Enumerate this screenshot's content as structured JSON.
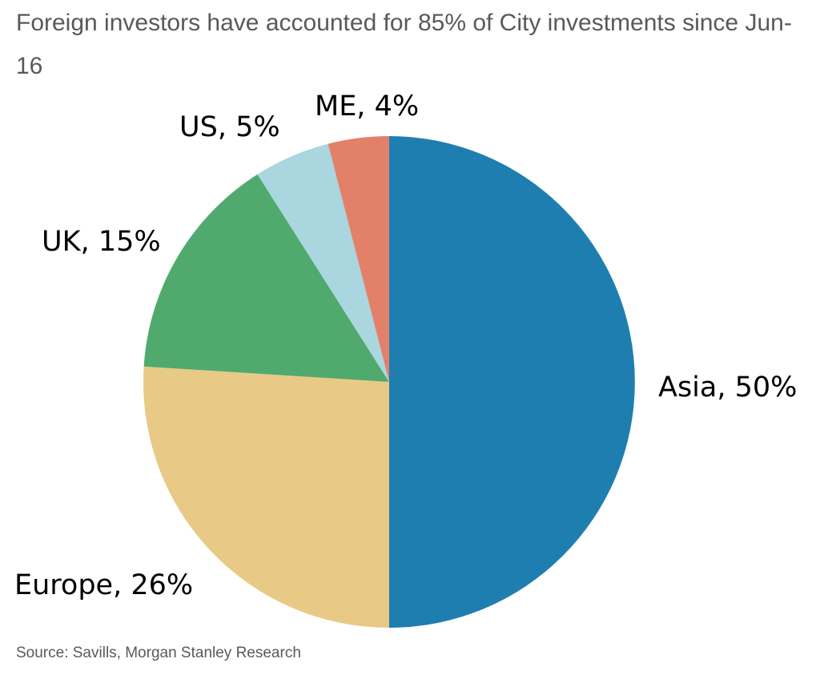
{
  "chart_data": {
    "type": "pie",
    "title": "Foreign investors have accounted for 85% of City investments since Jun-16",
    "source": "Source: Savills, Morgan Stanley Research",
    "slices": [
      {
        "category": "Asia",
        "value": 50,
        "label": "Asia, 50%",
        "color": "#1f7eb0"
      },
      {
        "category": "Europe",
        "value": 26,
        "label": "Europe, 26%",
        "color": "#e8ca86"
      },
      {
        "category": "UK",
        "value": 15,
        "label": "UK, 15%",
        "color": "#50aa6e"
      },
      {
        "category": "US",
        "value": 5,
        "label": "US, 5%",
        "color": "#a9d6df"
      },
      {
        "category": "ME",
        "value": 4,
        "label": "ME, 4%",
        "color": "#e3806a"
      }
    ],
    "start_angle": "12 o'clock",
    "direction": "clockwise",
    "legend": "none"
  }
}
